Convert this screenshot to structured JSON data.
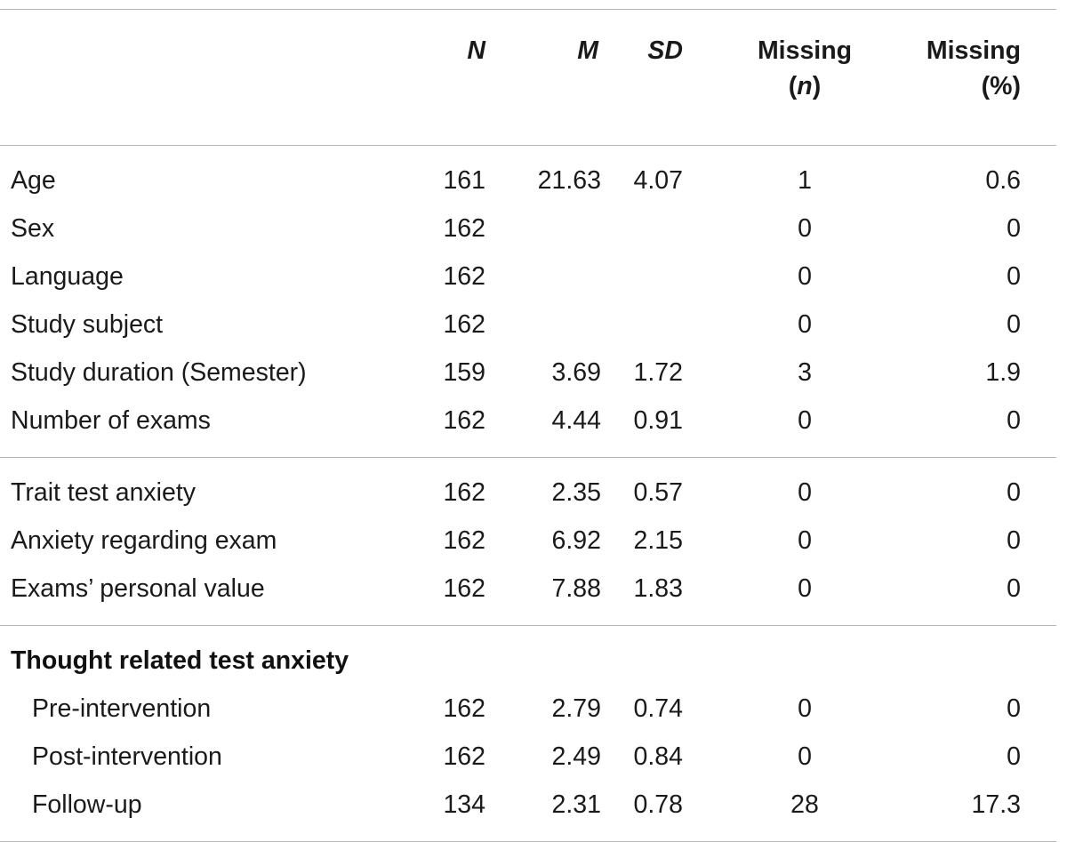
{
  "headers": {
    "n": "N",
    "m": "M",
    "sd": "SD",
    "missing_n_line1": "Missing",
    "missing_n_open": "(",
    "missing_n_var": "n",
    "missing_n_close": ")",
    "missing_pct_line1": "Missing",
    "missing_pct_line2": "(%)"
  },
  "groups": [
    {
      "rows": [
        {
          "label": "Age",
          "n": "161",
          "m": "21.63",
          "sd": "4.07",
          "miss_n": "1",
          "miss_pct": "0.6"
        },
        {
          "label": "Sex",
          "n": "162",
          "m": "",
          "sd": "",
          "miss_n": "0",
          "miss_pct": "0"
        },
        {
          "label": "Language",
          "n": "162",
          "m": "",
          "sd": "",
          "miss_n": "0",
          "miss_pct": "0"
        },
        {
          "label": "Study subject",
          "n": "162",
          "m": "",
          "sd": "",
          "miss_n": "0",
          "miss_pct": "0"
        },
        {
          "label": "Study duration (Semester)",
          "n": "159",
          "m": "3.69",
          "sd": "1.72",
          "miss_n": "3",
          "miss_pct": "1.9"
        },
        {
          "label": "Number of exams",
          "n": "162",
          "m": "4.44",
          "sd": "0.91",
          "miss_n": "0",
          "miss_pct": "0"
        }
      ]
    },
    {
      "rows": [
        {
          "label": "Trait test anxiety",
          "n": "162",
          "m": "2.35",
          "sd": "0.57",
          "miss_n": "0",
          "miss_pct": "0"
        },
        {
          "label": "Anxiety regarding exam",
          "n": "162",
          "m": "6.92",
          "sd": "2.15",
          "miss_n": "0",
          "miss_pct": "0"
        },
        {
          "label": "Exams’ personal value",
          "n": "162",
          "m": "7.88",
          "sd": "1.83",
          "miss_n": "0",
          "miss_pct": "0"
        }
      ]
    },
    {
      "heading": "Thought related test anxiety",
      "rows": [
        {
          "label": "Pre-intervention",
          "n": "162",
          "m": "2.79",
          "sd": "0.74",
          "miss_n": "0",
          "miss_pct": "0"
        },
        {
          "label": "Post-intervention",
          "n": "162",
          "m": "2.49",
          "sd": "0.84",
          "miss_n": "0",
          "miss_pct": "0"
        },
        {
          "label": "Follow-up",
          "n": "134",
          "m": "2.31",
          "sd": "0.78",
          "miss_n": "28",
          "miss_pct": "17.3"
        }
      ]
    }
  ]
}
